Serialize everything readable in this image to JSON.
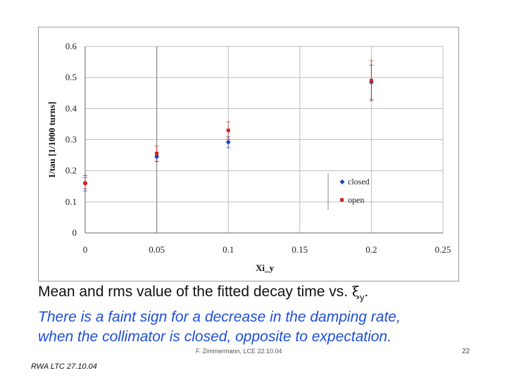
{
  "chart_data": {
    "type": "scatter",
    "xlabel": "Xi_y",
    "ylabel": "1/tau [1/1000 turns]",
    "xlim": [
      0,
      0.25
    ],
    "ylim": [
      0,
      0.6
    ],
    "x_ticks": [
      "0",
      "0.05",
      "0.1",
      "0.15",
      "0.2",
      "0.25"
    ],
    "y_ticks": [
      "0",
      "0.1",
      "0.2",
      "0.3",
      "0.4",
      "0.5",
      "0.6"
    ],
    "legend_position": "lower-right",
    "series": [
      {
        "name": "closed",
        "color": "#1f3fb0",
        "marker": "diamond",
        "points": [
          {
            "x": 0,
            "y": 0.16,
            "err": 0.025
          },
          {
            "x": 0.05,
            "y": 0.245,
            "err": 0.015
          },
          {
            "x": 0.1,
            "y": 0.292,
            "err": 0.018
          },
          {
            "x": 0.2,
            "y": 0.485,
            "err": 0.055
          }
        ]
      },
      {
        "name": "open",
        "color": "#cc2222",
        "marker": "square",
        "points": [
          {
            "x": 0,
            "y": 0.16,
            "err": 0.018
          },
          {
            "x": 0.05,
            "y": 0.255,
            "err": 0.025
          },
          {
            "x": 0.1,
            "y": 0.33,
            "err": 0.028
          },
          {
            "x": 0.2,
            "y": 0.49,
            "err": 0.065
          }
        ]
      }
    ]
  },
  "caption": {
    "line1_prefix": "Mean and rms value of the fitted decay time vs. ",
    "xi_symbol": "ξ",
    "xi_subscript": "y",
    "line1_suffix": ".",
    "line2": "There is a faint sign for a decrease in the damping rate,",
    "line3": "when the collimator is closed, opposite to expectation."
  },
  "footer": {
    "center": "F. Zimmermann, LCE 22.10.04",
    "page": "22",
    "left": "RWA LTC 27.10.04"
  }
}
